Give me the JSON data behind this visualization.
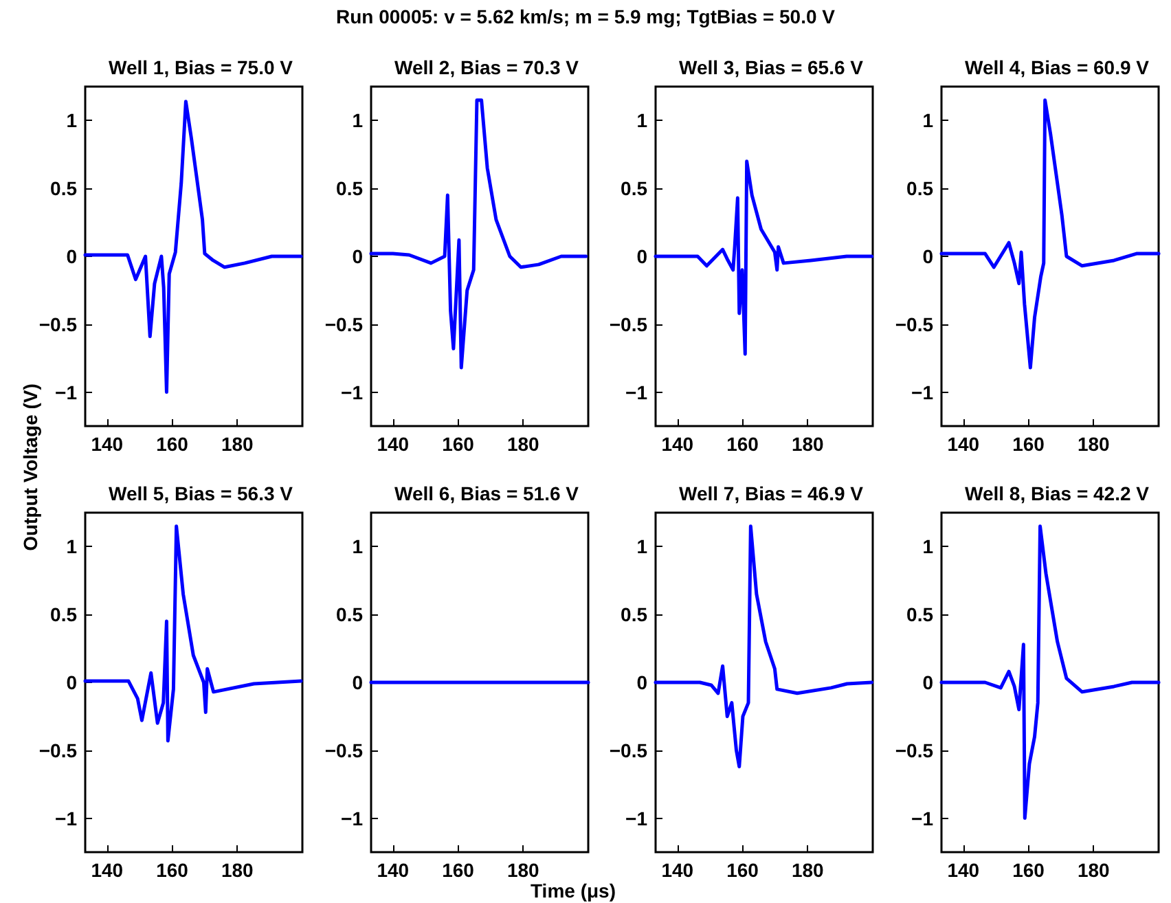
{
  "chart_data": [
    {
      "type": "line",
      "title": "Well 1, Bias = 75.0 V",
      "annotations": [
        "Run 00005: v = 5.62 km/s; m = 5.9 mg; TgtBias = 50.0 V"
      ],
      "ylabel": "Output Voltage (V)",
      "xlim": [
        133.3,
        200
      ],
      "ylim": [
        -1.25,
        1.25
      ],
      "xticks": [
        140,
        160,
        180
      ],
      "yticks": [
        -1,
        -0.5,
        0,
        0.5,
        1
      ],
      "grid": false,
      "series": [
        {
          "color": "#0000ff",
          "x": [
            133.3,
            140,
            146.3,
            148.8,
            151.8,
            153.2,
            154.6,
            156.7,
            157.4,
            158.3,
            159.1,
            161,
            162.8,
            164.2,
            165.9,
            169.3,
            170,
            172.6,
            176.1,
            182.3,
            190.6,
            199.6
          ],
          "values": [
            0.01,
            0.01,
            0.01,
            -0.17,
            0,
            -0.59,
            -0.2,
            0,
            -0.23,
            -1,
            -0.13,
            0.03,
            0.54,
            1.14,
            0.87,
            0.27,
            0.02,
            -0.03,
            -0.08,
            -0.05,
            0,
            0
          ]
        }
      ]
    },
    {
      "type": "line",
      "title": "Well 2, Bias = 70.3 V",
      "xlim": [
        133.3,
        200
      ],
      "ylim": [
        -1.25,
        1.25
      ],
      "xticks": [
        140,
        160,
        180
      ],
      "yticks": [
        -1,
        -0.5,
        0,
        0.5,
        1
      ],
      "grid": false,
      "series": [
        {
          "color": "#0000ff",
          "x": [
            133.3,
            140,
            145,
            151.7,
            155.9,
            156.8,
            157.7,
            158.6,
            160.3,
            161,
            162.8,
            164.8,
            165.8,
            167.2,
            169,
            171.7,
            175.9,
            179.3,
            184.8,
            191.7,
            199.3
          ],
          "values": [
            0.02,
            0.02,
            0.01,
            -0.05,
            0,
            0.45,
            -0.4,
            -0.68,
            0.12,
            -0.82,
            -0.25,
            -0.1,
            1.15,
            1.15,
            0.65,
            0.27,
            0,
            -0.08,
            -0.06,
            0,
            0
          ]
        }
      ]
    },
    {
      "type": "line",
      "title": "Well 3, Bias = 65.6 V",
      "xlim": [
        133.3,
        200
      ],
      "ylim": [
        -1.25,
        1.25
      ],
      "xticks": [
        140,
        160,
        180
      ],
      "yticks": [
        -1,
        -0.5,
        0,
        0.5,
        1
      ],
      "grid": false,
      "series": [
        {
          "color": "#0000ff",
          "x": [
            133.3,
            146.2,
            149,
            153.9,
            155.3,
            157.1,
            157.6,
            158.5,
            159,
            159.9,
            160.8,
            161.3,
            162.9,
            165.7,
            169.9,
            170.6,
            171,
            172.6,
            181,
            192,
            199.7
          ],
          "values": [
            0,
            0,
            -0.07,
            0.05,
            -0.02,
            -0.1,
            0.07,
            0.43,
            -0.42,
            -0.1,
            -0.72,
            0.7,
            0.45,
            0.2,
            0.03,
            -0.1,
            0.07,
            -0.05,
            -0.03,
            0,
            0
          ]
        }
      ]
    },
    {
      "type": "line",
      "title": "Well 4, Bias = 60.9 V",
      "xlim": [
        133.3,
        200
      ],
      "ylim": [
        -1.25,
        1.25
      ],
      "xticks": [
        140,
        160,
        180
      ],
      "yticks": [
        -1,
        -0.5,
        0,
        0.5,
        1
      ],
      "grid": false,
      "series": [
        {
          "color": "#0000ff",
          "x": [
            133.3,
            146.7,
            149.4,
            154,
            155.7,
            157.1,
            157.8,
            158.8,
            160.6,
            161.9,
            163.8,
            164.7,
            165.1,
            166.8,
            170.3,
            171.7,
            176.5,
            186.3,
            193.2,
            200
          ],
          "values": [
            0.02,
            0.02,
            -0.08,
            0.1,
            -0.05,
            -0.2,
            0.03,
            -0.35,
            -0.82,
            -0.45,
            -0.15,
            -0.05,
            1.15,
            0.9,
            0.3,
            0,
            -0.07,
            -0.03,
            0.02,
            0.02
          ]
        }
      ]
    },
    {
      "type": "line",
      "title": "Well 5, Bias = 56.3 V",
      "xlim": [
        133.3,
        200
      ],
      "ylim": [
        -1.25,
        1.25
      ],
      "xticks": [
        140,
        160,
        180
      ],
      "yticks": [
        -1,
        -0.5,
        0,
        0.5,
        1
      ],
      "grid": false,
      "series": [
        {
          "color": "#0000ff",
          "x": [
            133.3,
            146.6,
            149.4,
            150.7,
            153.5,
            155.5,
            157.3,
            158.3,
            158.7,
            160.4,
            161.3,
            163.4,
            166.5,
            169.7,
            170.3,
            170.8,
            172.7,
            185.1,
            199.6
          ],
          "values": [
            0.01,
            0.01,
            -0.12,
            -0.28,
            0.07,
            -0.3,
            -0.15,
            0.45,
            -0.43,
            -0.05,
            1.15,
            0.65,
            0.2,
            0,
            -0.22,
            0.1,
            -0.07,
            -0.01,
            0.01
          ]
        }
      ]
    },
    {
      "type": "line",
      "title": "Well 6, Bias = 51.6 V",
      "xlabel": "Time (μs)",
      "xlim": [
        133.3,
        200
      ],
      "ylim": [
        -1.25,
        1.25
      ],
      "xticks": [
        140,
        160,
        180
      ],
      "yticks": [
        -1,
        -0.5,
        0,
        0.5,
        1
      ],
      "grid": false,
      "series": [
        {
          "color": "#0000ff",
          "x": [
            133.3,
            160,
            180,
            200
          ],
          "values": [
            0,
            0,
            0,
            0
          ]
        }
      ]
    },
    {
      "type": "line",
      "title": "Well 7, Bias = 46.9 V",
      "xlim": [
        133.3,
        200
      ],
      "ylim": [
        -1.25,
        1.25
      ],
      "xticks": [
        140,
        160,
        180
      ],
      "yticks": [
        -1,
        -0.5,
        0,
        0.5,
        1
      ],
      "grid": false,
      "series": [
        {
          "color": "#0000ff",
          "x": [
            133.3,
            146.9,
            150.4,
            152.5,
            153.9,
            155.3,
            156.7,
            158.1,
            159,
            160.1,
            161.8,
            162.5,
            164.3,
            167.1,
            169.9,
            170.6,
            176.8,
            187.2,
            192.1,
            199.7
          ],
          "values": [
            0,
            0,
            -0.02,
            -0.08,
            0.12,
            -0.25,
            -0.15,
            -0.5,
            -0.62,
            -0.25,
            -0.15,
            1.15,
            0.65,
            0.3,
            0.1,
            -0.05,
            -0.08,
            -0.04,
            -0.01,
            0
          ]
        }
      ]
    },
    {
      "type": "line",
      "title": "Well 8, Bias = 42.2 V",
      "xlim": [
        133.3,
        200
      ],
      "ylim": [
        -1.25,
        1.25
      ],
      "xticks": [
        140,
        160,
        180
      ],
      "yticks": [
        -1,
        -0.5,
        0,
        0.5,
        1
      ],
      "grid": false,
      "series": [
        {
          "color": "#0000ff",
          "x": [
            133.3,
            146.7,
            151.5,
            154,
            155.7,
            157.1,
            158.5,
            158.9,
            160.3,
            161.9,
            162.9,
            163.6,
            165.4,
            168.9,
            171.7,
            176.5,
            186.3,
            191.8,
            200
          ],
          "values": [
            0,
            0,
            -0.04,
            0.08,
            -0.03,
            -0.2,
            0.28,
            -1,
            -0.6,
            -0.4,
            -0.15,
            1.15,
            0.8,
            0.3,
            0.03,
            -0.07,
            -0.03,
            0,
            0
          ]
        }
      ]
    }
  ]
}
